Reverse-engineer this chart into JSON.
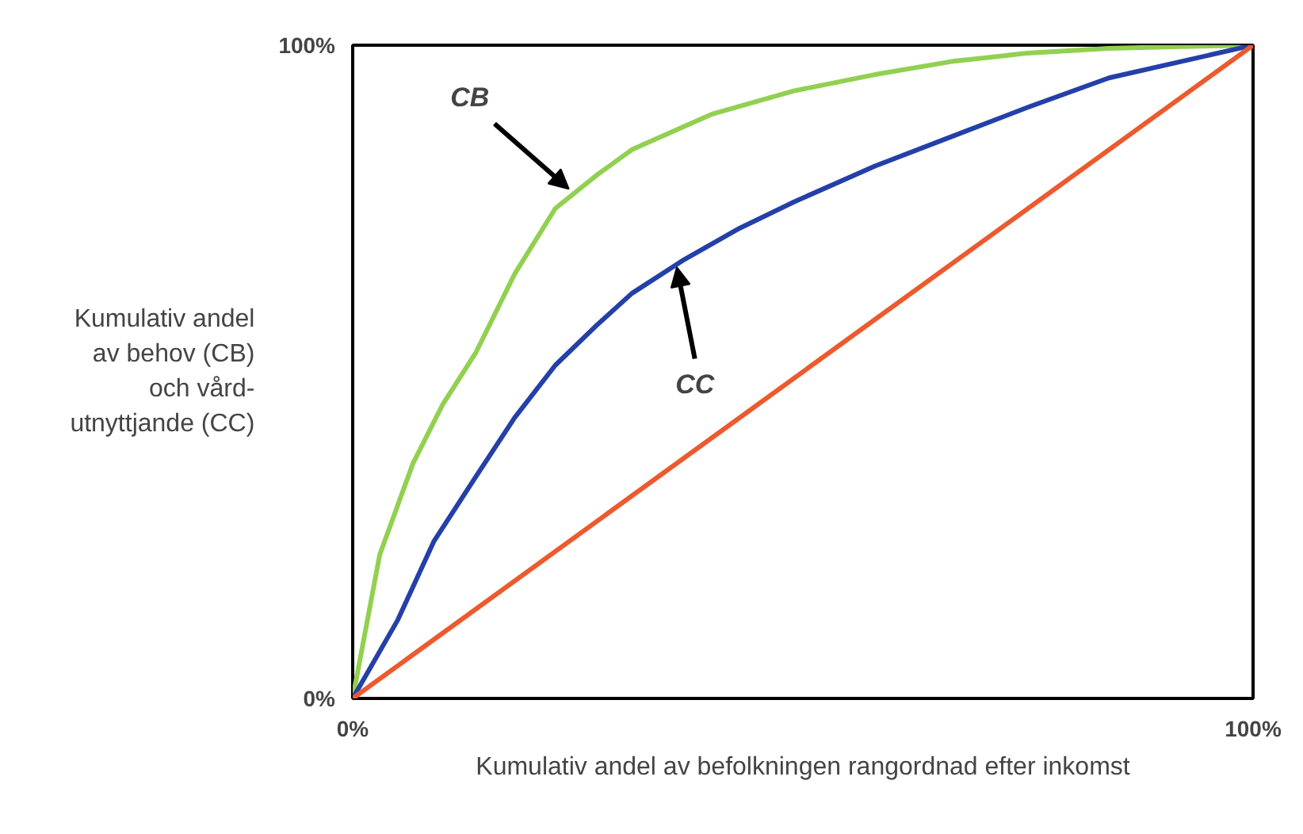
{
  "chart_data": {
    "type": "line",
    "xlabel": "Kumulativ andel av befolkningen rangordnad efter inkomst",
    "ylabel": "Kumulativ andel\nav behov (CB)\noch vård-\nutnyttjande (CC)",
    "series": [
      {
        "color": "#92d050",
        "x": [
          0,
          3,
          6.7,
          10,
          13.7,
          18,
          22.5,
          27,
          31,
          40,
          49,
          58,
          66.5,
          75,
          84,
          92,
          100
        ],
        "values": [
          0,
          22,
          36,
          45,
          53,
          65,
          75,
          80,
          84,
          89.5,
          93,
          95.5,
          97.5,
          98.8,
          99.5,
          99.8,
          100
        ]
      },
      {
        "color": "#2440a8",
        "x": [
          0,
          5,
          9,
          13.7,
          18,
          22.5,
          27,
          31,
          36.6,
          43,
          49,
          58,
          66.5,
          75,
          84,
          92,
          100
        ],
        "values": [
          0,
          12,
          24,
          34,
          43,
          51,
          57,
          62,
          67,
          72,
          76,
          81.5,
          86,
          90.5,
          95,
          97.5,
          100
        ]
      },
      {
        "color": "#ec5a2d",
        "x": [
          0,
          100
        ],
        "values": [
          0,
          100
        ]
      }
    ],
    "annotations": [
      {
        "text": "CB",
        "x": 24,
        "y": 78
      },
      {
        "text": "CC",
        "x": 36,
        "y": 66
      }
    ],
    "xlim": [
      0,
      100
    ],
    "ylim": [
      0,
      100
    ],
    "xticks": [
      {
        "value": 0,
        "label": "0%"
      },
      {
        "value": 100,
        "label": "100%"
      }
    ],
    "yticks": [
      {
        "value": 0,
        "label": "0%"
      },
      {
        "value": 100,
        "label": "100%"
      }
    ],
    "tick_labels": true
  }
}
